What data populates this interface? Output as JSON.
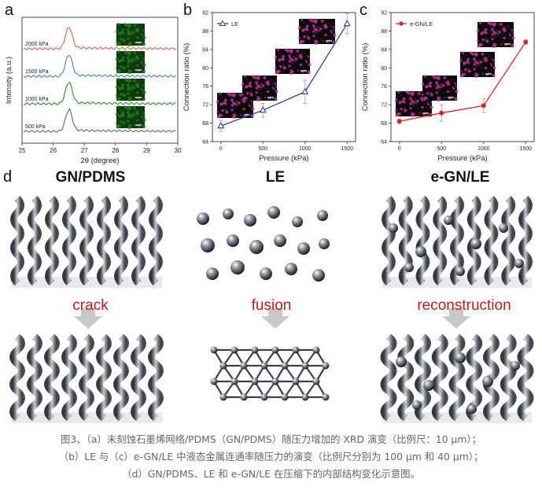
{
  "panel_labels": {
    "a": "a",
    "b": "b",
    "c": "c",
    "d": "d"
  },
  "chart_data": [
    {
      "type": "line",
      "panel": "a",
      "xlabel": "2θ (degree)",
      "ylabel": "Intensity (a.u.)",
      "xlim": [
        25,
        30
      ],
      "xticks": [
        "25",
        "26",
        "27",
        "28",
        "29",
        "30"
      ],
      "series": [
        {
          "name": "2000 kPa",
          "peak": 26.5,
          "color": "#e0604a"
        },
        {
          "name": "1500 kPa",
          "peak": 26.5,
          "color": "#4f74c9"
        },
        {
          "name": "1000 kPa",
          "peak": 26.5,
          "color": "#2f8a2f"
        },
        {
          "name": "500 kPa",
          "peak": 26.5,
          "color": "#666666"
        }
      ]
    },
    {
      "type": "line",
      "panel": "b",
      "xlabel": "Pressure (kPa)",
      "ylabel": "Connection ratio (%)",
      "xlim": [
        -100,
        1600
      ],
      "ylim": [
        64,
        92
      ],
      "xticks": [
        "0",
        "500",
        "1000",
        "1500"
      ],
      "yticks": [
        "64",
        "68",
        "72",
        "76",
        "80",
        "84",
        "88",
        "92"
      ],
      "series": [
        {
          "name": "LE",
          "color": "#2b3fa8",
          "marker": "triangle",
          "x": [
            0,
            500,
            1000,
            1500
          ],
          "y": [
            67.4,
            70.8,
            74.8,
            89.6
          ],
          "err": [
            1.2,
            1.5,
            2.5,
            2.2
          ]
        }
      ]
    },
    {
      "type": "line",
      "panel": "c",
      "xlabel": "Pressure (kPa)",
      "ylabel": "Connection ratio (%)",
      "xlim": [
        -100,
        1600
      ],
      "ylim": [
        64,
        92
      ],
      "xticks": [
        "0",
        "500",
        "1000",
        "1500"
      ],
      "yticks": [
        "64",
        "68",
        "72",
        "76",
        "80",
        "84",
        "88",
        "92"
      ],
      "series": [
        {
          "name": "e-GN/LE",
          "color": "#e02020",
          "marker": "circle",
          "x": [
            0,
            500,
            1000,
            1500
          ],
          "y": [
            68.4,
            70.2,
            71.8,
            85.6
          ],
          "err": [
            0.5,
            1.8,
            1.5,
            0.5
          ]
        }
      ]
    }
  ],
  "panel_d": {
    "columns": [
      {
        "title": "GN/PDMS",
        "label": "crack"
      },
      {
        "title": "LE",
        "label": "fusion"
      },
      {
        "title": "e-GN/LE",
        "label": "reconstruction"
      }
    ]
  },
  "caption": {
    "line1": "图3、（a）未刻蚀石墨烯网络/PDMS（GN/PDMS）随压力增加的 XRD 演变（比例尺：10 μm）；",
    "line2": "（b）LE 与（c）e-GN/LE 中液态金属连通率随压力的演变（比例尺分别为 100 μm 和 40 μm）；",
    "line3": "（d）GN/PDMS、LE 和 e-GN/LE 在压缩下的内部结构变化示意图。"
  },
  "colors": {
    "accent_red": "#c21a1a",
    "arrow_gray": "#c8c8c8"
  }
}
